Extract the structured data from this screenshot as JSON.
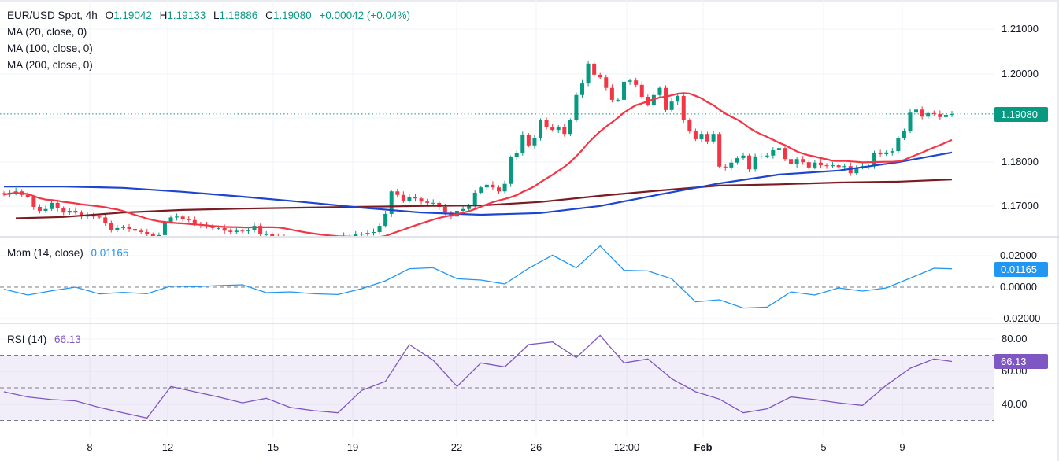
{
  "header": {
    "symbol": "EUR/USD Spot, 4h",
    "o_label": "O",
    "o": "1.19042",
    "h_label": "H",
    "h": "1.19133",
    "l_label": "L",
    "l": "1.18886",
    "c_label": "C",
    "c": "1.19080",
    "change": "+0.00042 (+0.04%)"
  },
  "legends": {
    "ma20": "MA (20, close, 0)",
    "ma100": "MA (100, close, 0)",
    "ma200": "MA (200, close, 0)",
    "mom": "Mom (14, close)",
    "mom_value": "0.01165",
    "rsi": "RSI (14)",
    "rsi_value": "66.13"
  },
  "badges": {
    "price": "1.19080",
    "mom": "0.01165",
    "rsi": "66.13"
  },
  "colors": {
    "up": "#089981",
    "down": "#f23645",
    "ma20": "#f23645",
    "ma100": "#1e45d0",
    "ma200": "#7a1c22",
    "mom": "#2196f3",
    "rsi": "#7e57c2"
  },
  "chart_data": [
    {
      "type": "candlestick",
      "title": "EUR/USD Spot, 4h",
      "ylim": [
        1.16,
        1.2135
      ],
      "y_ticks": [
        "1.21000",
        "1.20000",
        "1.18000",
        "1.17000"
      ],
      "x_ticks": [
        "8",
        "12",
        "15",
        "19",
        "22",
        "26",
        "12:00",
        "Feb",
        "5",
        "9"
      ],
      "grid": true,
      "last_price": 1.1908,
      "closes": [
        1.1726,
        1.173,
        1.1733,
        1.1725,
        1.1721,
        1.1698,
        1.1689,
        1.1693,
        1.1707,
        1.1695,
        1.1685,
        1.1689,
        1.1685,
        1.1676,
        1.168,
        1.1676,
        1.1674,
        1.1662,
        1.1646,
        1.165,
        1.1653,
        1.1648,
        1.1644,
        1.1641,
        1.1636,
        1.1632,
        1.1634,
        1.1664,
        1.1674,
        1.1676,
        1.1671,
        1.1668,
        1.1659,
        1.1657,
        1.1655,
        1.165,
        1.165,
        1.1644,
        1.1641,
        1.1644,
        1.1643,
        1.1646,
        1.1655,
        1.1636,
        1.1636,
        1.1632,
        1.1628,
        1.1625,
        1.1621,
        1.1623,
        1.1621,
        1.1619,
        1.1621,
        1.1623,
        1.1621,
        1.1625,
        1.1627,
        1.1632,
        1.1632,
        1.1636,
        1.1637,
        1.1639,
        1.1641,
        1.1655,
        1.1682,
        1.1733,
        1.1725,
        1.1712,
        1.1721,
        1.1717,
        1.171,
        1.1707,
        1.1707,
        1.1698,
        1.1685,
        1.1676,
        1.1689,
        1.1693,
        1.17,
        1.173,
        1.1742,
        1.1748,
        1.1742,
        1.1733,
        1.175,
        1.181,
        1.1819,
        1.186,
        1.1837,
        1.1854,
        1.1894,
        1.1878,
        1.1872,
        1.1878,
        1.1863,
        1.1894,
        1.1951,
        1.1977,
        1.2022,
        1.1997,
        1.1991,
        1.1967,
        1.194,
        1.194,
        1.1981,
        1.1984,
        1.1974,
        1.1947,
        1.1929,
        1.1951,
        1.1967,
        1.1917,
        1.1936,
        1.1949,
        1.1894,
        1.1869,
        1.1851,
        1.1863,
        1.1846,
        1.1863,
        1.1789,
        1.1787,
        1.1798,
        1.1808,
        1.1814,
        1.1783,
        1.1812,
        1.1812,
        1.1814,
        1.1826,
        1.1831,
        1.1806,
        1.1794,
        1.1806,
        1.1799,
        1.1787,
        1.1798,
        1.1792,
        1.179,
        1.1792,
        1.1788,
        1.179,
        1.1774,
        1.1787,
        1.179,
        1.179,
        1.1819,
        1.1817,
        1.1821,
        1.1824,
        1.1854,
        1.1869,
        1.1911,
        1.1918,
        1.1902,
        1.191,
        1.1908,
        1.1901,
        1.1906,
        1.1908
      ],
      "series": [
        {
          "name": "MA (100, close, 0)",
          "values": [
            1.1744,
            1.1744,
            1.1741,
            1.1732,
            1.1721,
            1.1709,
            1.1696,
            1.1685,
            1.168,
            1.1684,
            1.17,
            1.1726,
            1.1751,
            1.1771,
            1.178,
            1.1799,
            1.1821
          ]
        },
        {
          "name": "MA (200, close, 0)",
          "values": [
            1.1672,
            1.1675,
            1.1685,
            1.1691,
            1.1694,
            1.1696,
            1.1698,
            1.17,
            1.1701,
            1.1709,
            1.1723,
            1.1735,
            1.1746,
            1.1749,
            1.1753,
            1.1755,
            1.176
          ]
        }
      ]
    },
    {
      "type": "line",
      "title": "Mom (14, close)",
      "ylim": [
        -0.0225,
        0.0225
      ],
      "y_ticks": [
        "0.02000",
        "0.00000",
        "-0.02000"
      ],
      "values": [
        -0.0013,
        -0.005,
        -0.0023,
        0,
        -0.0043,
        -0.0033,
        -0.0042,
        0.0007,
        0.0003,
        0.001,
        0.0015,
        -0.0035,
        -0.003,
        -0.0042,
        -0.0047,
        -0.001,
        0.004,
        0.0117,
        0.0123,
        0.0053,
        0.0045,
        0.002,
        0.012,
        0.0203,
        0.0123,
        0.0262,
        0.0107,
        0.0103,
        0.0053,
        -0.0093,
        -0.008,
        -0.0133,
        -0.0127,
        -0.003,
        -0.005,
        -0.0005,
        -0.0025,
        -0.0005,
        0.0057,
        0.012,
        0.01165
      ]
    },
    {
      "type": "line",
      "title": "RSI (14)",
      "ylim": [
        20,
        90
      ],
      "y_ticks": [
        "80.00",
        "60.00",
        "40.00"
      ],
      "bands": [
        30,
        50,
        70
      ],
      "values": [
        47.6,
        44.4,
        42.8,
        42,
        38,
        34.7,
        31.5,
        50.8,
        47.6,
        44.4,
        40.8,
        43.6,
        38,
        36,
        34.7,
        48.4,
        54,
        76.5,
        66.9,
        50.8,
        65.3,
        62.8,
        76.5,
        78.1,
        68.5,
        82.1,
        65.3,
        67.7,
        55.6,
        47.6,
        43.1,
        34.7,
        37.2,
        44.4,
        42.8,
        40.8,
        39.2,
        51.6,
        62,
        67.7,
        66.13
      ]
    }
  ]
}
